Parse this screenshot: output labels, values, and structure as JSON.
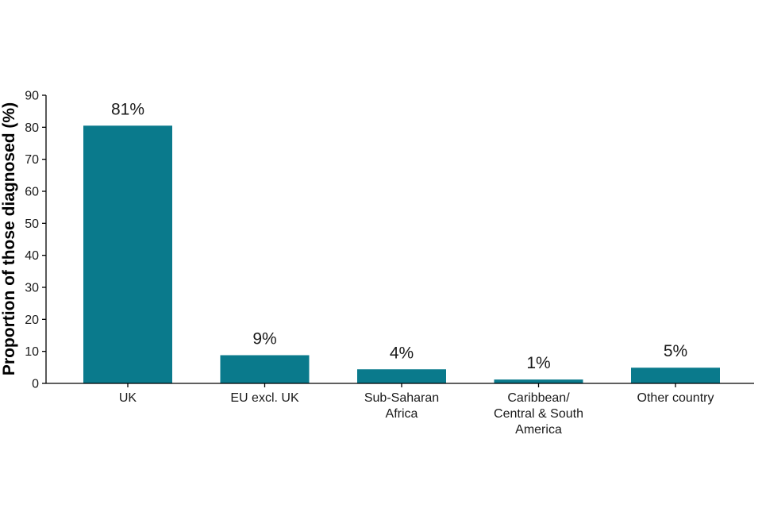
{
  "chart_data": {
    "type": "bar",
    "title": "",
    "xlabel": "",
    "ylabel": "Proportion of those diagnosed (%)",
    "ylim": [
      0,
      90
    ],
    "yticks": [
      0,
      10,
      20,
      30,
      40,
      50,
      60,
      70,
      80,
      90
    ],
    "grid": false,
    "legend": "none",
    "bar_color": "#0a7a8c",
    "categories": [
      [
        "UK"
      ],
      [
        "EU excl. UK"
      ],
      [
        "Sub-Saharan",
        "Africa"
      ],
      [
        "Caribbean/",
        "Central & South",
        "America"
      ],
      [
        "Other country"
      ]
    ],
    "values": [
      80.5,
      8.8,
      4.4,
      1.2,
      4.9
    ],
    "data_labels": [
      "81%",
      "9%",
      "4%",
      "1%",
      "5%"
    ]
  }
}
